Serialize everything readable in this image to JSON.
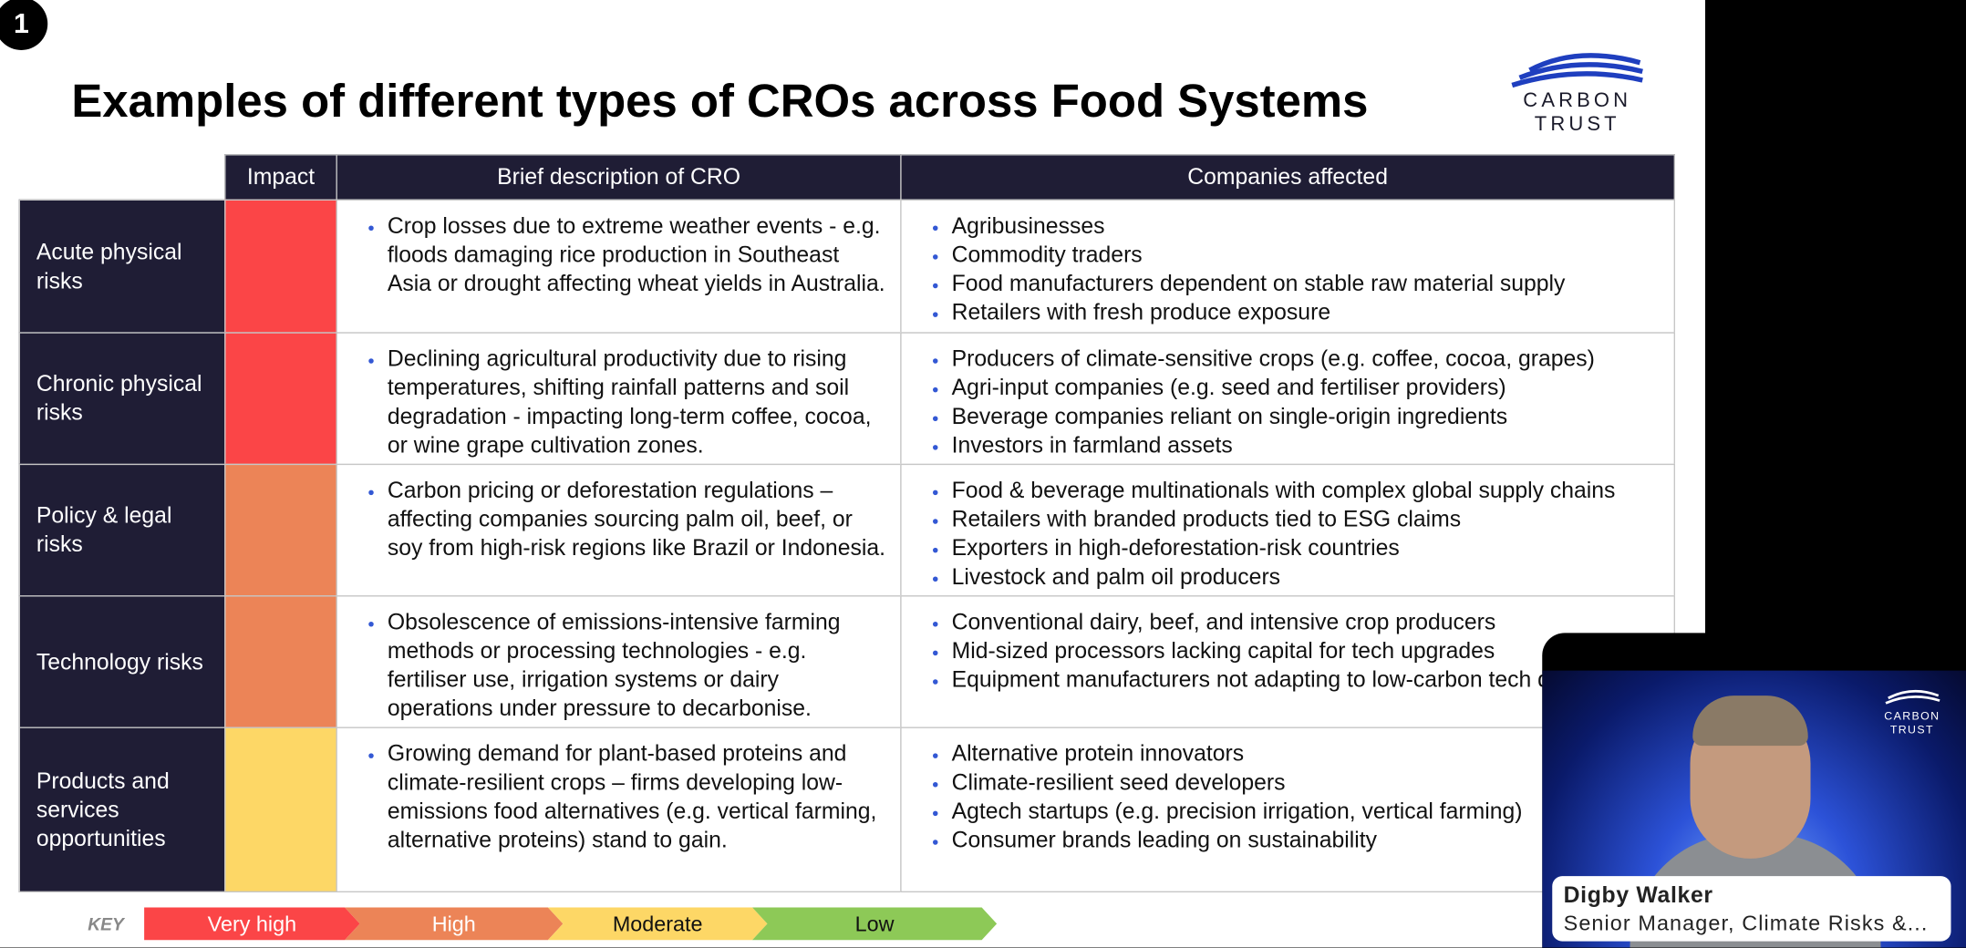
{
  "badge": "1",
  "title": "Examples of different types of CROs across Food Systems",
  "logo": {
    "line1": "CARBON",
    "line2": "TRUST",
    "color": "#1f3fbf"
  },
  "table": {
    "headers": [
      "Impact",
      "Brief description of CRO",
      "Companies affected"
    ],
    "rows": [
      {
        "label": "Acute physical risks",
        "impact_color": "#fb4547",
        "description": [
          "Crop losses due to extreme weather events - e.g. floods damaging rice production in Southeast Asia or drought affecting wheat yields in Australia."
        ],
        "companies": [
          "Agribusinesses",
          "Commodity traders",
          "Food manufacturers dependent on stable raw material supply",
          "Retailers with fresh produce exposure"
        ]
      },
      {
        "label": "Chronic physical risks",
        "impact_color": "#fb4547",
        "description": [
          "Declining agricultural productivity due to rising temperatures, shifting rainfall patterns and soil degradation - impacting long-term coffee, cocoa, or wine grape cultivation zones."
        ],
        "companies": [
          "Producers of climate-sensitive crops (e.g. coffee, cocoa, grapes)",
          "Agri-input companies (e.g. seed and fertiliser providers)",
          "Beverage companies reliant on single-origin ingredients",
          "Investors in farmland assets"
        ]
      },
      {
        "label": "Policy & legal risks",
        "impact_color": "#ec8457",
        "description": [
          "Carbon pricing or deforestation regulations – affecting companies sourcing palm oil, beef, or soy from high-risk regions like Brazil or Indonesia."
        ],
        "companies": [
          "Food & beverage multinationals with complex global supply chains",
          "Retailers with branded products tied to ESG claims",
          "Exporters in high-deforestation-risk countries",
          "Livestock and palm oil producers"
        ]
      },
      {
        "label": "Technology risks",
        "impact_color": "#ec8457",
        "description": [
          "Obsolescence of emissions-intensive farming methods or processing technologies - e.g. fertiliser use, irrigation systems or dairy operations under pressure to decarbonise."
        ],
        "companies": [
          "Conventional dairy, beef, and intensive crop producers",
          "Mid-sized processors lacking capital for tech upgrades",
          "Equipment manufacturers not adapting to low-carbon tech demand"
        ]
      },
      {
        "label": "Products and services opportunities",
        "impact_color": "#fdd766",
        "description": [
          "Growing demand for plant-based proteins and climate-resilient crops – firms developing low-emissions food alternatives (e.g. vertical farming, alternative proteins) stand to gain."
        ],
        "companies": [
          "Alternative protein innovators",
          "Climate-resilient seed developers",
          "Agtech startups (e.g. precision irrigation, vertical farming)",
          "Consumer brands leading on sustainability"
        ]
      }
    ]
  },
  "key": {
    "label": "KEY",
    "items": [
      {
        "label": "Very high",
        "color": "#fb4547",
        "text_color": "#ffffff"
      },
      {
        "label": "High",
        "color": "#ec8457",
        "text_color": "#ffffff"
      },
      {
        "label": "Moderate",
        "color": "#fdd766",
        "text_color": "#111111"
      },
      {
        "label": "Low",
        "color": "#8dc957",
        "text_color": "#111111"
      }
    ]
  },
  "video": {
    "name": "Digby Walker",
    "role": "Senior Manager, Climate Risks &...",
    "logo_line1": "CARBON",
    "logo_line2": "TRUST"
  }
}
